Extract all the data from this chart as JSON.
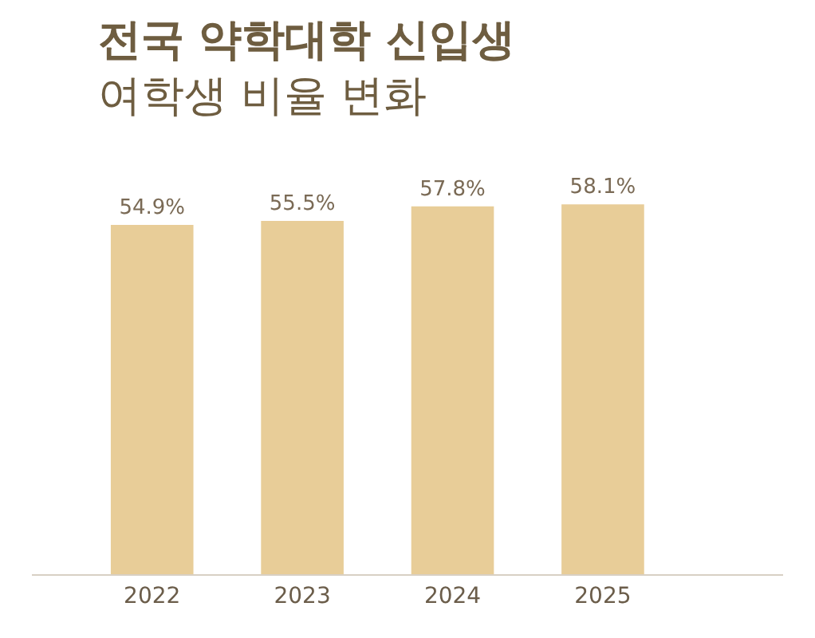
{
  "chart_data": {
    "type": "bar",
    "title": "전국 약학대학 신입생",
    "subtitle": "여학생 비율 변화",
    "categories": [
      "2022",
      "2023",
      "2024",
      "2025"
    ],
    "values": [
      54.9,
      55.5,
      57.8,
      58.1
    ],
    "value_labels": [
      "54.9%",
      "55.5%",
      "57.8%",
      "58.1%"
    ],
    "color": "#e8cd98"
  }
}
